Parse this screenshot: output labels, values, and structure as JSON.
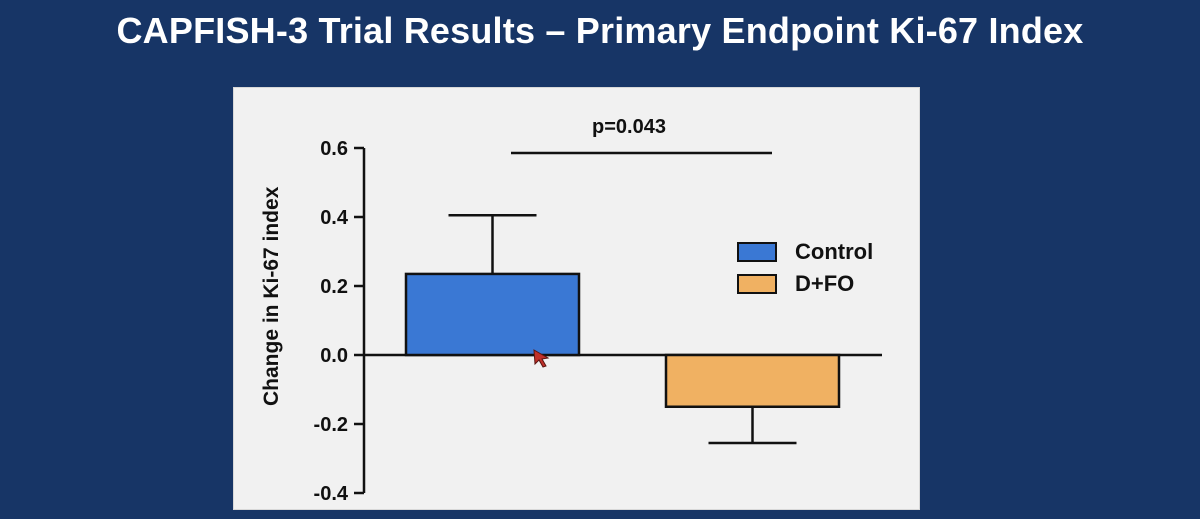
{
  "slide": {
    "title": "CAPFISH-3 Trial Results – Primary Endpoint Ki-67 Index"
  },
  "chart_data": {
    "type": "bar",
    "categories": [
      "Control",
      "D+FO"
    ],
    "values": [
      0.235,
      -0.15
    ],
    "error_upper": [
      0.405,
      -0.15
    ],
    "error_lower": [
      0.235,
      -0.255
    ],
    "ylabel": "Change in Ki-67 index",
    "ylim": [
      -0.4,
      0.6
    ],
    "yticks": [
      "-0.4",
      "-0.2",
      "0.0",
      "0.2",
      "0.4",
      "0.6"
    ],
    "ytick_values": [
      -0.4,
      -0.2,
      0.0,
      0.2,
      0.4,
      0.6
    ],
    "annotation": "p=0.043",
    "colors": [
      "#3a78d4",
      "#f0b162"
    ],
    "legend": [
      "Control",
      "D+FO"
    ],
    "legend_position": "right",
    "grid": false
  },
  "icons": {
    "cursor": "mouse-pointer-icon",
    "cursor_color": "#c0302a"
  }
}
